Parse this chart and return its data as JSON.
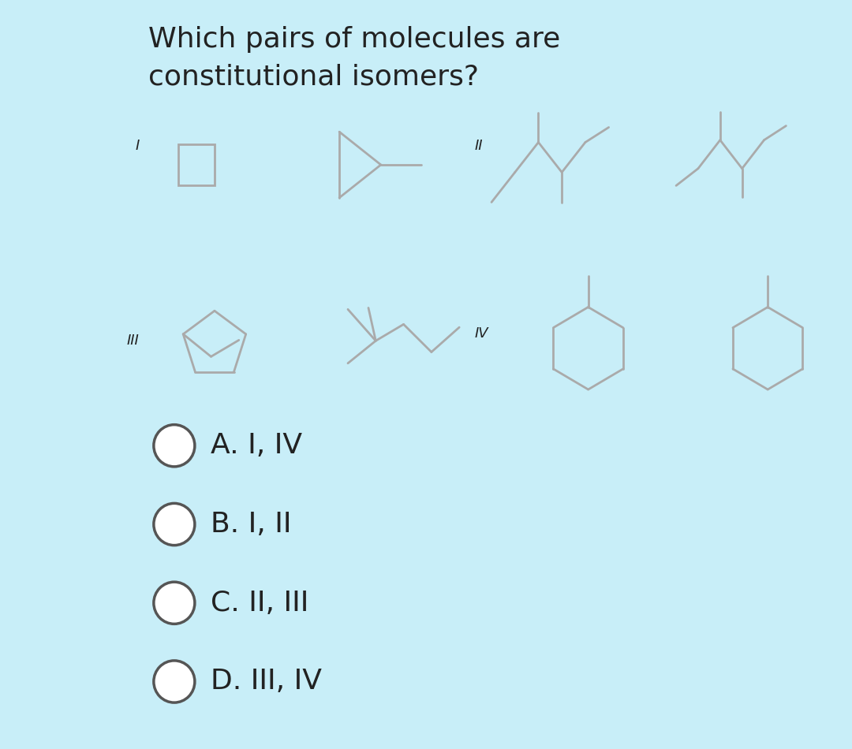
{
  "title_line1": "Which pairs of molecules are",
  "title_line2": "constitutional isomers?",
  "title_fontsize": 26,
  "background_color": "#ffffff",
  "outer_background": "#c8eef8",
  "options": [
    "A. I, IV",
    "B. I, II",
    "C. II, III",
    "D. III, IV"
  ],
  "option_fontsize": 26,
  "label_fontsize": 13,
  "line_color": "#aaaaaa",
  "line_width": 2.0,
  "circle_color": "#555555",
  "text_color": "#222222"
}
